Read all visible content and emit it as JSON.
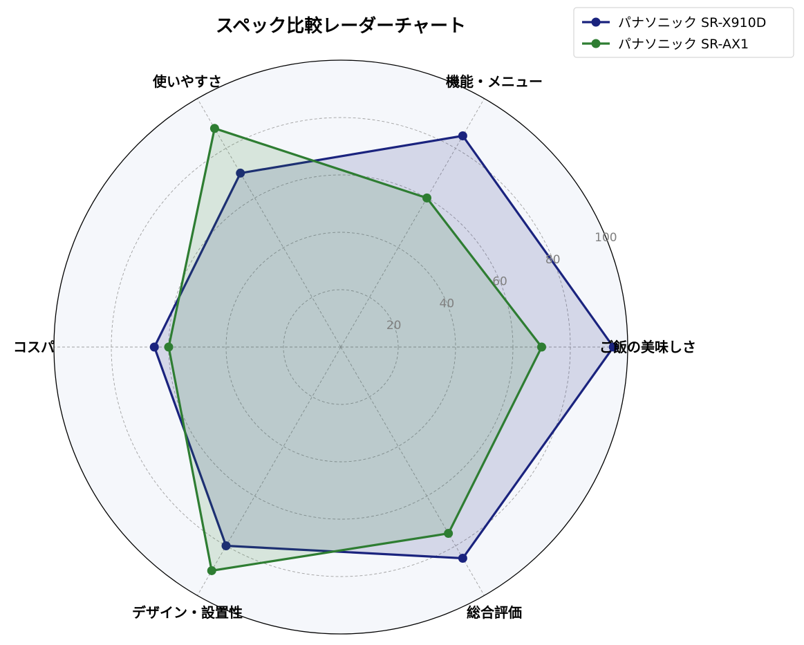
{
  "chart_data": {
    "type": "radar",
    "title": "スペック比較レーダーチャート",
    "axes": [
      "ご飯の美味しさ",
      "機能・メニュー",
      "使いやすさ",
      "コスパ",
      "デザイン・設置性",
      "総合評価"
    ],
    "rlim": [
      0,
      100
    ],
    "rticks": [
      20,
      40,
      60,
      80,
      100
    ],
    "rtick_labels": [
      "20",
      "40",
      "60",
      "80",
      "100"
    ],
    "grid": true,
    "legend_position": "top-right",
    "series": [
      {
        "name": "パナソニック SR-X910D",
        "values": [
          95,
          85,
          70,
          65,
          80,
          85
        ],
        "color": "#1a237e"
      },
      {
        "name": "パナソニック SR-AX1",
        "values": [
          70,
          60,
          88,
          60,
          90,
          75
        ],
        "color": "#2e7d32"
      }
    ]
  }
}
